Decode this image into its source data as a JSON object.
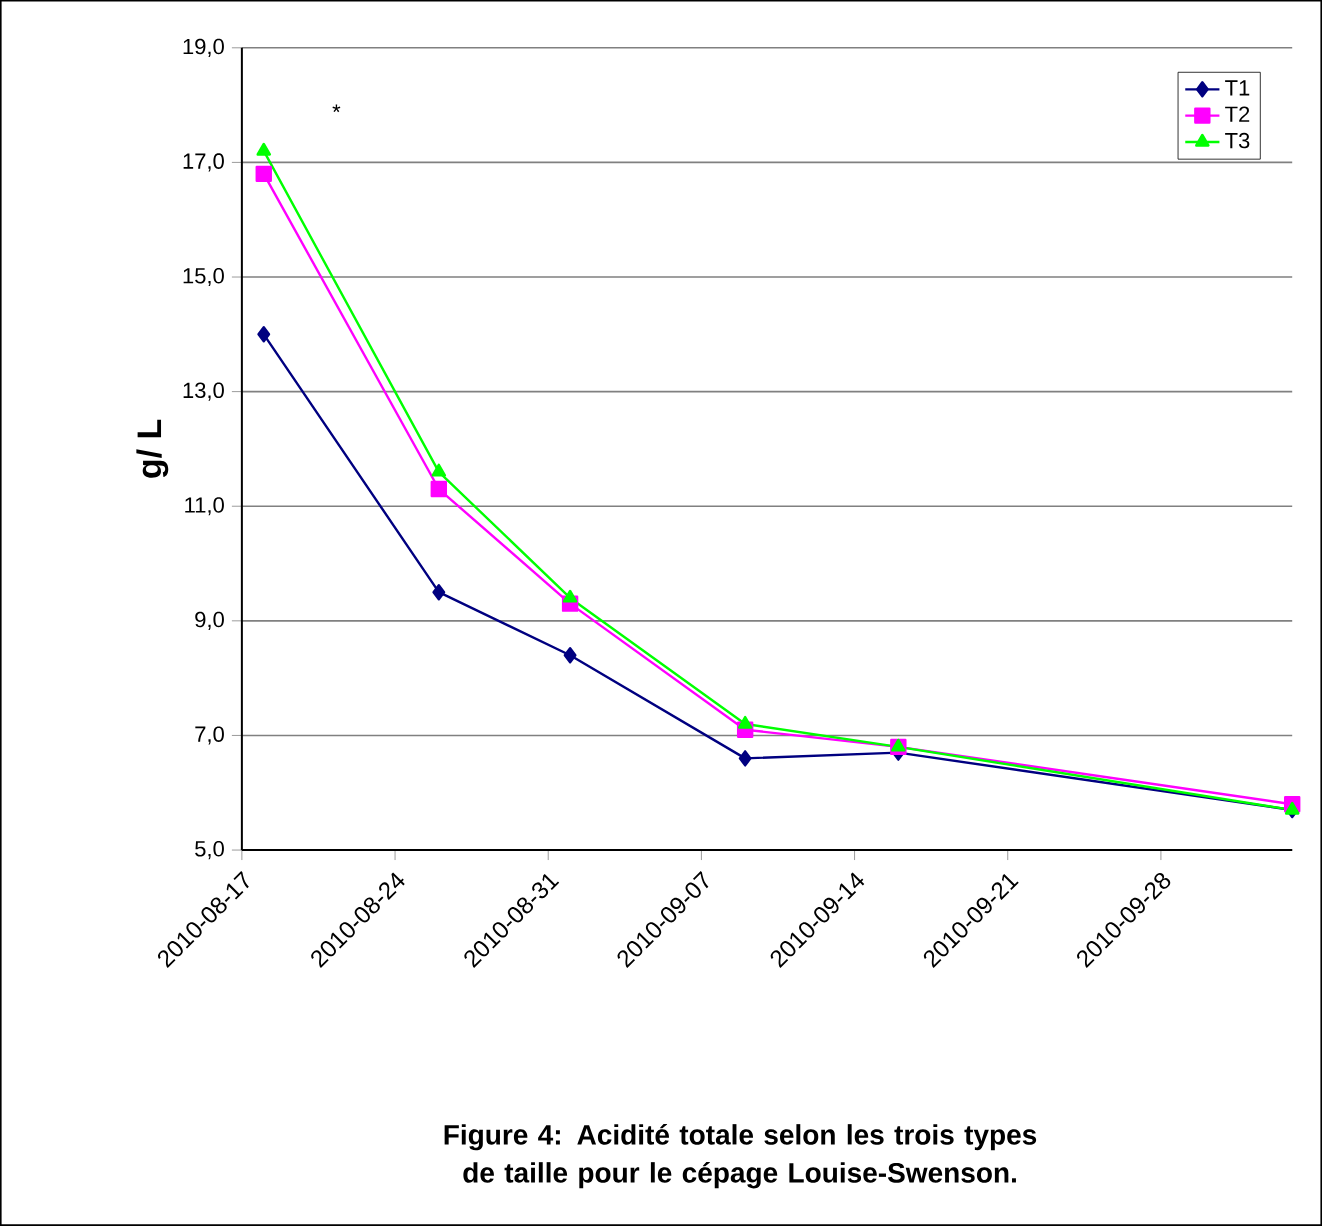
{
  "chart_data": {
    "type": "line",
    "title": "Figure 4: Acidité totale selon les trois types de taille pour le cépage Louise-Swenson.",
    "ylabel": "g/ L",
    "x": [
      "2010-08-18",
      "2010-08-26",
      "2010-09-01",
      "2010-09-09",
      "2010-09-16",
      "2010-10-04"
    ],
    "series": [
      {
        "name": "T1",
        "color": "#000080",
        "marker": "diamond",
        "values": [
          14.0,
          9.5,
          8.4,
          6.6,
          6.7,
          5.7
        ]
      },
      {
        "name": "T2",
        "color": "#ff00ff",
        "marker": "square",
        "values": [
          16.8,
          11.3,
          9.3,
          7.1,
          6.8,
          5.8
        ]
      },
      {
        "name": "T3",
        "color": "#00ff00",
        "marker": "triangle",
        "values": [
          17.2,
          11.6,
          9.4,
          7.2,
          6.8,
          5.7
        ]
      }
    ],
    "xlim": [
      "2010-08-17",
      "2010-10-04"
    ],
    "xticks": [
      "2010-08-17",
      "2010-08-24",
      "2010-08-31",
      "2010-09-07",
      "2010-09-14",
      "2010-09-21",
      "2010-09-28"
    ],
    "ylim": [
      5,
      19
    ],
    "yticks": [
      {
        "value": 5,
        "label": "5,0"
      },
      {
        "value": 7,
        "label": "7,0"
      },
      {
        "value": 9,
        "label": "9,0"
      },
      {
        "value": 11,
        "label": "11,0"
      },
      {
        "value": 13,
        "label": "13,0"
      },
      {
        "value": 15,
        "label": "15,0"
      },
      {
        "value": 17,
        "label": "17,0"
      },
      {
        "value": 19,
        "label": "19,0"
      }
    ],
    "grid": "y",
    "legend": "top right",
    "line_style": "solid",
    "annotations": [
      "*"
    ]
  }
}
